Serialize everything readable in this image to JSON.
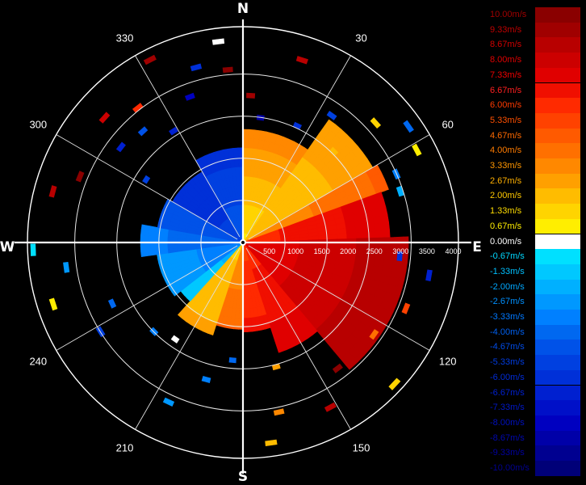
{
  "chart_data": {
    "type": "heatmap",
    "subtype": "polar-radar-radial-velocity-ppi",
    "compass": {
      "north": "N",
      "east": "E",
      "south": "S",
      "west": "W"
    },
    "azimuth_labels": [
      "30",
      "60",
      "120",
      "150",
      "210",
      "240",
      "300",
      "330"
    ],
    "azimuth_ticks_deg": [
      30,
      60,
      120,
      150,
      210,
      240,
      300,
      330
    ],
    "range_labels": [
      "500",
      "1000",
      "1500",
      "2000",
      "2500",
      "3000",
      "3500",
      "4000"
    ],
    "range_max": 4100,
    "range_rings": [
      800,
      1600,
      2400,
      3200,
      4100
    ],
    "colorbar": {
      "min": -10.0,
      "max": 10.0,
      "labels": [
        "10.00m/s",
        "9.33m/s",
        "8.67m/s",
        "8.00m/s",
        "7.33m/s",
        "6.67m/s",
        "6.00m/s",
        "5.33m/s",
        "4.67m/s",
        "4.00m/s",
        "3.33m/s",
        "2.67m/s",
        "2.00m/s",
        "1.33m/s",
        "0.67m/s",
        "0.00m/s",
        "-0.67m/s",
        "-1.33m/s",
        "-2.00m/s",
        "-2.67m/s",
        "-3.33m/s",
        "-4.00m/s",
        "-4.67m/s",
        "-5.33m/s",
        "-6.00m/s",
        "-6.67m/s",
        "-7.33m/s",
        "-8.00m/s",
        "-8.67m/s",
        "-9.33m/s",
        "-10.00m/s"
      ],
      "values": [
        10.0,
        9.33,
        8.67,
        8.0,
        7.33,
        6.67,
        6.0,
        5.33,
        4.67,
        4.0,
        3.33,
        2.67,
        2.0,
        1.33,
        0.67,
        0.0,
        -0.67,
        -1.33,
        -2.0,
        -2.67,
        -3.33,
        -4.0,
        -4.67,
        -5.33,
        -6.0,
        -6.67,
        -7.33,
        -8.0,
        -8.67,
        -9.33,
        -10.0
      ],
      "colors": [
        "#8a0000",
        "#a00000",
        "#b80000",
        "#cc0000",
        "#e00000",
        "#f00f00",
        "#ff2a00",
        "#ff4200",
        "#ff5a00",
        "#ff7000",
        "#ff8800",
        "#ffa000",
        "#ffbc00",
        "#ffd400",
        "#ffee00",
        "#ffffff",
        "#00e0ff",
        "#00c8ff",
        "#00b0ff",
        "#0098ff",
        "#0080ff",
        "#0068f0",
        "#0052e8",
        "#0040e0",
        "#0030d8",
        "#0020d0",
        "#0010c8",
        "#0000c0",
        "#0000a8",
        "#000090",
        "#000078"
      ],
      "text_colors": [
        "#a00000",
        "#c00000",
        "#d00000",
        "#e00000",
        "#f00000",
        "#ff2020",
        "#ff3a00",
        "#ff5000",
        "#ff6a00",
        "#ff7c00",
        "#ff9600",
        "#ffb000",
        "#ffc800",
        "#ffdc00",
        "#ffee00",
        "#ffffff",
        "#00d8ff",
        "#00c0ff",
        "#00a8ff",
        "#0090ff",
        "#0078ff",
        "#0060f0",
        "#004ce8",
        "#003ce0",
        "#002cd8",
        "#0020d0",
        "#0018c8",
        "#0010c0",
        "#0008b0",
        "#0000a0",
        "#000090"
      ]
    },
    "field_sectors": [
      {
        "az_from": 0,
        "az_to": 35,
        "range_max": 2150,
        "vel_near": 1.0,
        "vel_far": 3.5
      },
      {
        "az_from": 35,
        "az_to": 60,
        "range_max": 2850,
        "vel_near": 2.0,
        "vel_far": 2.5
      },
      {
        "az_from": 60,
        "az_to": 70,
        "range_max": 2950,
        "vel_near": 3.0,
        "vel_far": 4.5
      },
      {
        "az_from": 70,
        "az_to": 88,
        "range_max": 2800,
        "vel_near": 6.0,
        "vel_far": 7.5
      },
      {
        "az_from": 88,
        "az_to": 140,
        "range_max": 3150,
        "vel_near": 7.0,
        "vel_far": 9.0
      },
      {
        "az_from": 140,
        "az_to": 162,
        "range_max": 2200,
        "vel_near": 6.0,
        "vel_far": 7.5
      },
      {
        "az_from": 162,
        "az_to": 180,
        "range_max": 1700,
        "vel_near": 5.5,
        "vel_far": 6.5
      },
      {
        "az_from": 180,
        "az_to": 198,
        "range_max": 1650,
        "vel_near": 3.0,
        "vel_far": 4.5
      },
      {
        "az_from": 198,
        "az_to": 222,
        "range_max": 1850,
        "vel_near": 1.5,
        "vel_far": 2.5
      },
      {
        "az_from": 222,
        "az_to": 232,
        "range_max": 1500,
        "vel_near": -2.0,
        "vel_far": -1.0
      },
      {
        "az_from": 232,
        "az_to": 262,
        "range_max": 1650,
        "vel_near": -3.5,
        "vel_far": -2.5
      },
      {
        "az_from": 262,
        "az_to": 280,
        "range_max": 1950,
        "vel_near": -4.0,
        "vel_far": -3.5
      },
      {
        "az_from": 280,
        "az_to": 300,
        "range_max": 1650,
        "vel_near": -5.0,
        "vel_far": -4.5
      },
      {
        "az_from": 300,
        "az_to": 330,
        "range_max": 1550,
        "vel_near": -5.5,
        "vel_far": -6.0
      },
      {
        "az_from": 330,
        "az_to": 360,
        "range_max": 1800,
        "vel_near": -4.5,
        "vel_far": -6.0
      }
    ],
    "echo_cells": [
      {
        "az": 353,
        "range": 3800,
        "value": 0.0
      },
      {
        "az": 355,
        "range": 3250,
        "value": 10.0
      },
      {
        "az": 3,
        "range": 2750,
        "value": 9.33
      },
      {
        "az": 8,
        "range": 2350,
        "value": -8.67
      },
      {
        "az": 18,
        "range": 3600,
        "value": 8.67
      },
      {
        "az": 25,
        "range": 2400,
        "value": -6.0
      },
      {
        "az": 35,
        "range": 2900,
        "value": -5.33
      },
      {
        "az": 45,
        "range": 2400,
        "value": 2.0
      },
      {
        "az": 48,
        "range": 3350,
        "value": 1.33
      },
      {
        "az": 55,
        "range": 3800,
        "value": -4.0
      },
      {
        "az": 62,
        "range": 3700,
        "value": 0.67
      },
      {
        "az": 66,
        "range": 3150,
        "value": -3.33
      },
      {
        "az": 72,
        "range": 3100,
        "value": -2.0
      },
      {
        "az": 95,
        "range": 2950,
        "value": -6.0
      },
      {
        "az": 100,
        "range": 3550,
        "value": -6.67
      },
      {
        "az": 112,
        "range": 3300,
        "value": 5.33
      },
      {
        "az": 125,
        "range": 3000,
        "value": 4.0
      },
      {
        "az": 133,
        "range": 3900,
        "value": 1.33
      },
      {
        "az": 143,
        "range": 2950,
        "value": 10.0
      },
      {
        "az": 152,
        "range": 3500,
        "value": 8.67
      },
      {
        "az": 165,
        "range": 2400,
        "value": 2.67
      },
      {
        "az": 168,
        "range": 3250,
        "value": 3.33
      },
      {
        "az": 172,
        "range": 3800,
        "value": 2.0
      },
      {
        "az": 185,
        "range": 2200,
        "value": -4.0
      },
      {
        "az": 195,
        "range": 2650,
        "value": -3.33
      },
      {
        "az": 205,
        "range": 3300,
        "value": -2.67
      },
      {
        "az": 215,
        "range": 2200,
        "value": 0.0
      },
      {
        "az": 225,
        "range": 2350,
        "value": -3.33
      },
      {
        "az": 238,
        "range": 3150,
        "value": -5.33
      },
      {
        "az": 245,
        "range": 2700,
        "value": -4.0
      },
      {
        "az": 252,
        "range": 3750,
        "value": 0.67
      },
      {
        "az": 262,
        "range": 3350,
        "value": -2.67
      },
      {
        "az": 268,
        "range": 3950,
        "value": -0.67
      },
      {
        "az": 285,
        "range": 3700,
        "value": 8.67
      },
      {
        "az": 292,
        "range": 3300,
        "value": 10.0
      },
      {
        "az": 303,
        "range": 2150,
        "value": -5.33
      },
      {
        "az": 308,
        "range": 2900,
        "value": -6.67
      },
      {
        "az": 312,
        "range": 3500,
        "value": 8.0
      },
      {
        "az": 318,
        "range": 2800,
        "value": -4.67
      },
      {
        "az": 322,
        "range": 3200,
        "value": 6.0
      },
      {
        "az": 328,
        "range": 2450,
        "value": -6.67
      },
      {
        "az": 333,
        "range": 3850,
        "value": 9.33
      },
      {
        "az": 340,
        "range": 2900,
        "value": -8.0
      },
      {
        "az": 345,
        "range": 3400,
        "value": -6.0
      }
    ]
  }
}
